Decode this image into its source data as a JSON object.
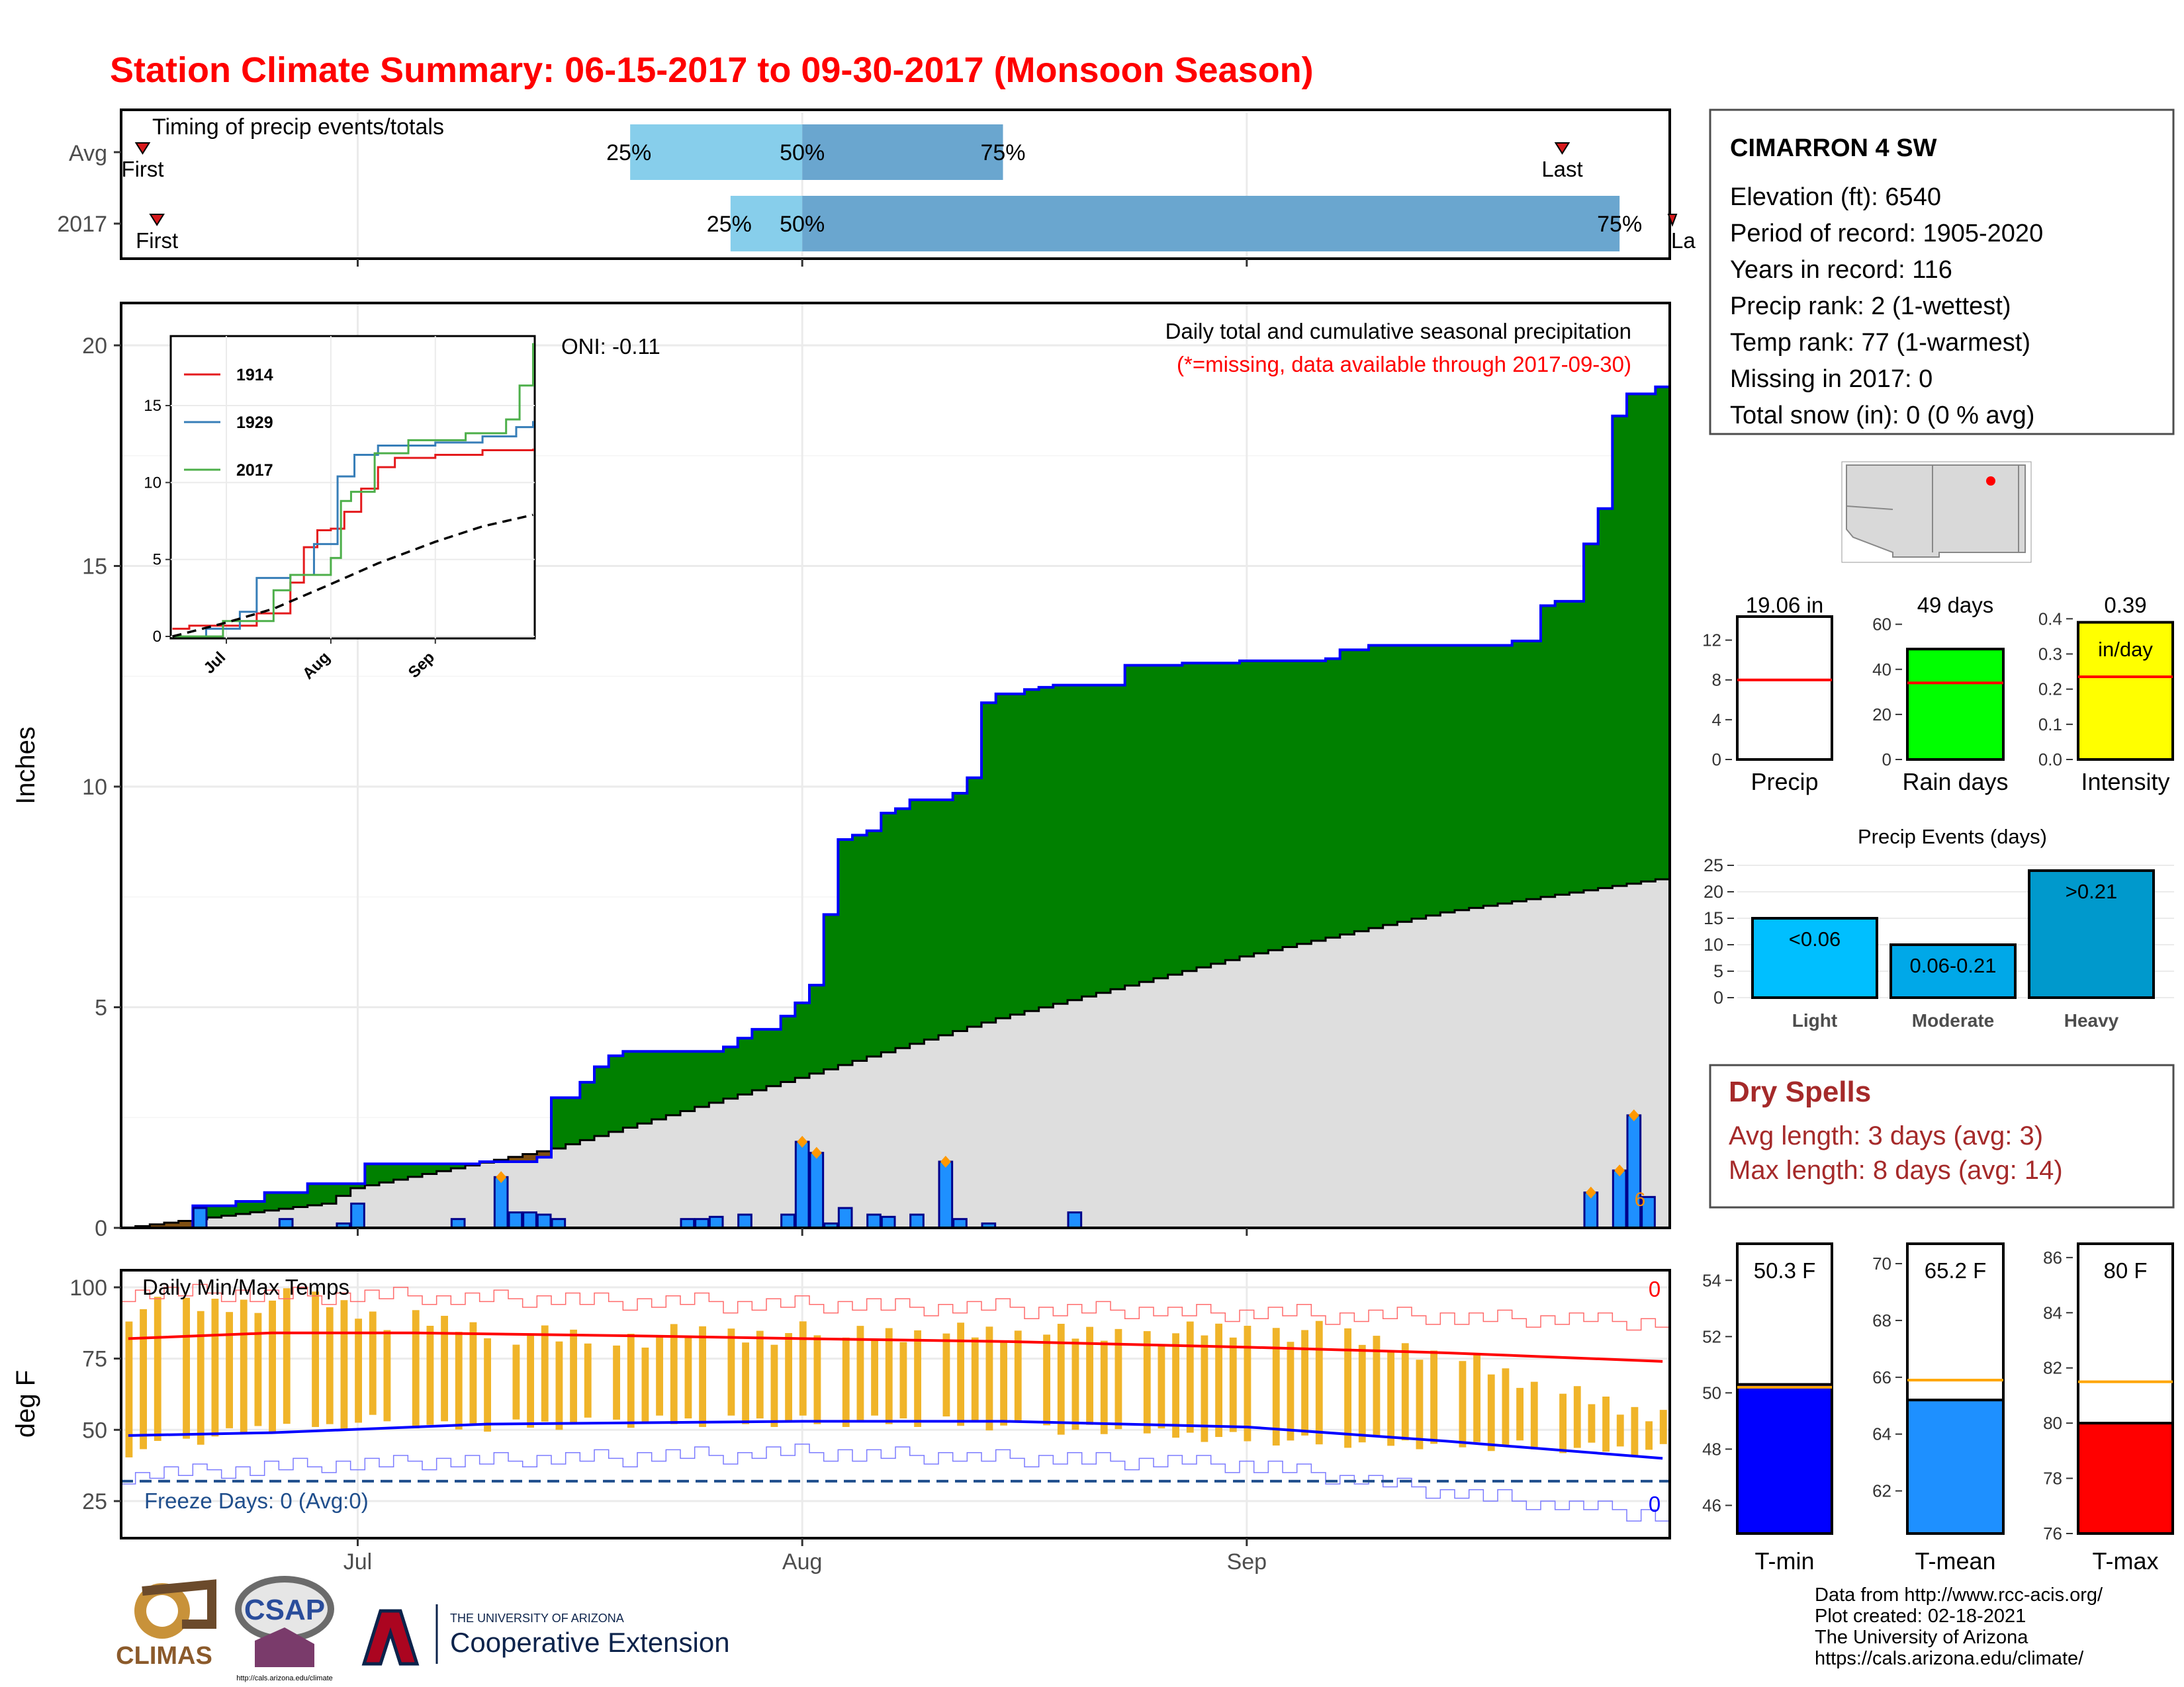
{
  "title": "Station Climate Summary: 06-15-2017 to 09-30-2017 (Monsoon Season)",
  "timing": {
    "label": "Timing of precip events/totals",
    "rows": [
      {
        "name": "Avg",
        "first_label": "First",
        "last_label": "Last",
        "p25_label": "25%",
        "p50_label": "50%",
        "p75_label": "75%",
        "first": "2017-06-16",
        "p25": "2017-07-20",
        "p50": "2017-08-01",
        "p75": "2017-08-15",
        "last": "2017-09-23"
      },
      {
        "name": "2017",
        "first_label": "First",
        "last_label": "Last",
        "p25_label": "25%",
        "p50_label": "50%",
        "p75_label": "75%",
        "first": "2017-06-17",
        "p25": "2017-07-27",
        "p50": "2017-08-01",
        "p75": "2017-09-27",
        "last": "2017-09-30"
      }
    ]
  },
  "precip": {
    "ylabel": "Inches",
    "oni_label": "ONI: -0.11",
    "subtitle": "Daily total and cumulative seasonal precipitation",
    "missing_note": "(*=missing, data available through 2017-09-30)",
    "missing_marker": "6",
    "yticks": [
      "0",
      "5",
      "10",
      "15",
      "20"
    ],
    "xticks": [
      "Jul",
      "Aug",
      "Sep"
    ]
  },
  "inset": {
    "yticks": [
      "0",
      "5",
      "10",
      "15"
    ],
    "xticks": [
      "Jul",
      "Aug",
      "Sep"
    ],
    "legend": [
      "1914",
      "1929",
      "2017"
    ],
    "colors": [
      "#e41a1c",
      "#377eb8",
      "#4daf4a"
    ]
  },
  "temps": {
    "label": "Daily Min/Max Temps",
    "ylabel": "deg F",
    "yticks": [
      "25",
      "50",
      "75",
      "100"
    ],
    "freeze_label": "Freeze Days: 0 (Avg:0)",
    "top_count": "0",
    "bottom_count": "0"
  },
  "station": {
    "name": "CIMARRON 4 SW",
    "lines": [
      "Elevation (ft): 6540",
      "Period of record: 1905-2020",
      "Years in record: 116",
      "Precip rank: 2 (1-wettest)",
      "Temp rank: 77 (1-warmest)",
      "Missing in 2017: 0",
      "Total snow (in): 0 (0 % avg)"
    ]
  },
  "summary_bars": [
    {
      "label": "Precip",
      "value_text": "19.06 in",
      "value": 19.06,
      "avg": 8.0,
      "ymax": 14.5,
      "ticks": [
        "0",
        "4",
        "8",
        "12"
      ],
      "tickvals": [
        0,
        4,
        8,
        12
      ],
      "color": "#ffffff"
    },
    {
      "label": "Rain days",
      "value_text": "49 days",
      "value": 49,
      "avg": 34,
      "ymax": 64,
      "ticks": [
        "0",
        "20",
        "40",
        "60"
      ],
      "tickvals": [
        0,
        20,
        40,
        60
      ],
      "color": "#00ff00"
    },
    {
      "label": "Intensity",
      "value_text": "0.39",
      "value_text2": "in/day",
      "value": 0.39,
      "avg": 0.235,
      "ymax": 0.41,
      "ticks": [
        "0.0",
        "0.1",
        "0.2",
        "0.3",
        "0.4"
      ],
      "tickvals": [
        0,
        0.1,
        0.2,
        0.3,
        0.4
      ],
      "color": "#ffff00"
    }
  ],
  "events": {
    "title": "Precip Events (days)",
    "yticks": [
      "0",
      "5",
      "10",
      "15",
      "20",
      "25"
    ],
    "bars": [
      {
        "label": "Light",
        "range": "<0.06",
        "value": 15,
        "color": "#00bfff"
      },
      {
        "label": "Moderate",
        "range": "0.06-0.21",
        "value": 10,
        "color": "#00a8e8"
      },
      {
        "label": "Heavy",
        "range": ">0.21",
        "value": 24,
        "color": "#0099cc"
      }
    ]
  },
  "dry_spells": {
    "title": "Dry Spells",
    "avg_line": "Avg length: 3 days (avg: 3)",
    "max_line": "Max length: 8 days (avg: 14)"
  },
  "temp_bars": [
    {
      "label": "T-min",
      "value_text": "50.3 F",
      "value": 50.3,
      "avg": 50.2,
      "ymin": 45,
      "ymax": 55.3,
      "ticks": [
        "46",
        "48",
        "50",
        "52",
        "54"
      ],
      "tickvals": [
        46,
        48,
        50,
        52,
        54
      ],
      "color": "#0000ff"
    },
    {
      "label": "T-mean",
      "value_text": "65.2 F",
      "value": 65.2,
      "avg": 65.9,
      "ymin": 60.5,
      "ymax": 70.7,
      "ticks": [
        "62",
        "64",
        "66",
        "68",
        "70"
      ],
      "tickvals": [
        62,
        64,
        66,
        68,
        70
      ],
      "color": "#1e90ff"
    },
    {
      "label": "T-max",
      "value_text": "80 F",
      "value": 80.0,
      "avg": 81.5,
      "ymin": 76,
      "ymax": 86.5,
      "ticks": [
        "76",
        "78",
        "80",
        "82",
        "84",
        "86"
      ],
      "tickvals": [
        76,
        78,
        80,
        82,
        84,
        86
      ],
      "color": "#ff0000"
    }
  ],
  "footer": [
    "Data from http://www.rcc-acis.org/",
    "Plot created: 02-18-2021",
    "The University of Arizona",
    "https://cals.arizona.edu/climate/"
  ],
  "logos": {
    "climas": "CLIMAS",
    "csap": "CSAP",
    "csap_url": "http://cals.arizona.edu/climate",
    "ua_small": "THE UNIVERSITY OF ARIZONA",
    "ua_big": "Cooperative Extension"
  },
  "chart_data": {
    "type": "area",
    "title": "Daily total and cumulative seasonal precipitation",
    "ylabel": "Inches",
    "ylim": [
      0,
      21
    ],
    "x_start": "2017-06-15",
    "x_end": "2017-09-30",
    "series": [
      {
        "name": "Cumulative 2017",
        "points": [
          [
            "2017-06-15",
            0
          ],
          [
            "2017-06-20",
            0.5
          ],
          [
            "2017-06-23",
            0.6
          ],
          [
            "2017-06-25",
            0.8
          ],
          [
            "2017-06-28",
            1.0
          ],
          [
            "2017-07-01",
            1.0
          ],
          [
            "2017-07-02",
            1.45
          ],
          [
            "2017-07-09",
            1.45
          ],
          [
            "2017-07-10",
            1.5
          ],
          [
            "2017-07-14",
            1.6
          ],
          [
            "2017-07-15",
            2.95
          ],
          [
            "2017-07-17",
            3.3
          ],
          [
            "2017-07-18",
            3.65
          ],
          [
            "2017-07-19",
            3.9
          ],
          [
            "2017-07-20",
            4.0
          ],
          [
            "2017-07-26",
            4.0
          ],
          [
            "2017-07-27",
            4.1
          ],
          [
            "2017-07-28",
            4.3
          ],
          [
            "2017-07-29",
            4.5
          ],
          [
            "2017-07-31",
            4.8
          ],
          [
            "2017-08-01",
            5.1
          ],
          [
            "2017-08-02",
            5.5
          ],
          [
            "2017-08-03",
            7.1
          ],
          [
            "2017-08-04",
            8.8
          ],
          [
            "2017-08-05",
            8.9
          ],
          [
            "2017-08-06",
            9.0
          ],
          [
            "2017-08-07",
            9.4
          ],
          [
            "2017-08-08",
            9.5
          ],
          [
            "2017-08-09",
            9.7
          ],
          [
            "2017-08-12",
            9.85
          ],
          [
            "2017-08-13",
            10.2
          ],
          [
            "2017-08-14",
            11.9
          ],
          [
            "2017-08-15",
            12.1
          ],
          [
            "2017-08-17",
            12.2
          ],
          [
            "2017-08-18",
            12.25
          ],
          [
            "2017-08-19",
            12.3
          ],
          [
            "2017-08-24",
            12.75
          ],
          [
            "2017-08-28",
            12.8
          ],
          [
            "2017-09-01",
            12.85
          ],
          [
            "2017-09-07",
            12.9
          ],
          [
            "2017-09-08",
            13.1
          ],
          [
            "2017-09-10",
            13.2
          ],
          [
            "2017-09-14",
            13.2
          ],
          [
            "2017-09-19",
            13.2
          ],
          [
            "2017-09-20",
            13.3
          ],
          [
            "2017-09-22",
            14.1
          ],
          [
            "2017-09-23",
            14.2
          ],
          [
            "2017-09-24",
            14.2
          ],
          [
            "2017-09-25",
            15.5
          ],
          [
            "2017-09-26",
            16.3
          ],
          [
            "2017-09-27",
            18.4
          ],
          [
            "2017-09-28",
            18.9
          ],
          [
            "2017-09-30",
            19.06
          ]
        ]
      },
      {
        "name": "Cumulative average",
        "points": [
          [
            "2017-06-15",
            0
          ],
          [
            "2017-06-29",
            0.55
          ],
          [
            "2017-07-01",
            0.9
          ],
          [
            "2017-07-15",
            1.8
          ],
          [
            "2017-08-01",
            3.4
          ],
          [
            "2017-08-15",
            4.75
          ],
          [
            "2017-09-01",
            6.15
          ],
          [
            "2017-09-15",
            7.15
          ],
          [
            "2017-09-30",
            7.9
          ]
        ]
      },
      {
        "name": "Daily precip",
        "points": [
          [
            "2017-06-20",
            0.45
          ],
          [
            "2017-06-26",
            0.2
          ],
          [
            "2017-06-30",
            0.1
          ],
          [
            "2017-07-01",
            0.55
          ],
          [
            "2017-07-08",
            0.2
          ],
          [
            "2017-07-11",
            1.15
          ],
          [
            "2017-07-12",
            0.35
          ],
          [
            "2017-07-13",
            0.35
          ],
          [
            "2017-07-14",
            0.3
          ],
          [
            "2017-07-15",
            0.2
          ],
          [
            "2017-07-24",
            0.2
          ],
          [
            "2017-07-25",
            0.2
          ],
          [
            "2017-07-26",
            0.25
          ],
          [
            "2017-07-28",
            0.3
          ],
          [
            "2017-07-31",
            0.3
          ],
          [
            "2017-08-01",
            1.95
          ],
          [
            "2017-08-02",
            1.7
          ],
          [
            "2017-08-03",
            0.1
          ],
          [
            "2017-08-04",
            0.45
          ],
          [
            "2017-08-06",
            0.3
          ],
          [
            "2017-08-07",
            0.25
          ],
          [
            "2017-08-09",
            0.3
          ],
          [
            "2017-08-11",
            1.5
          ],
          [
            "2017-08-12",
            0.2
          ],
          [
            "2017-08-14",
            0.1
          ],
          [
            "2017-08-20",
            0.35
          ],
          [
            "2017-09-25",
            0.8
          ],
          [
            "2017-09-27",
            1.3
          ],
          [
            "2017-09-28",
            2.55
          ],
          [
            "2017-09-29",
            0.7
          ]
        ]
      }
    ],
    "inset": {
      "type": "line",
      "ylim": [
        0,
        19
      ],
      "series": [
        {
          "name": "1914",
          "points": [
            [
              "2017-06-15",
              0.5
            ],
            [
              "2017-06-20",
              0.7
            ],
            [
              "2017-07-01",
              0.7
            ],
            [
              "2017-07-10",
              1.5
            ],
            [
              "2017-07-20",
              3.5
            ],
            [
              "2017-07-24",
              5.8
            ],
            [
              "2017-07-28",
              6.9
            ],
            [
              "2017-08-01",
              7.0
            ],
            [
              "2017-08-05",
              8.1
            ],
            [
              "2017-08-10",
              9.6
            ],
            [
              "2017-08-15",
              11.0
            ],
            [
              "2017-08-20",
              11.6
            ],
            [
              "2017-09-01",
              11.8
            ],
            [
              "2017-09-15",
              12.1
            ],
            [
              "2017-09-30",
              12.2
            ]
          ]
        },
        {
          "name": "1929",
          "points": [
            [
              "2017-06-15",
              0.0
            ],
            [
              "2017-06-25",
              0.5
            ],
            [
              "2017-07-05",
              1.6
            ],
            [
              "2017-07-10",
              3.8
            ],
            [
              "2017-07-20",
              4.0
            ],
            [
              "2017-07-27",
              6.0
            ],
            [
              "2017-08-03",
              10.4
            ],
            [
              "2017-08-08",
              11.8
            ],
            [
              "2017-08-15",
              12.4
            ],
            [
              "2017-09-01",
              12.6
            ],
            [
              "2017-09-15",
              13.0
            ],
            [
              "2017-09-25",
              13.6
            ],
            [
              "2017-09-30",
              14.0
            ]
          ]
        },
        {
          "name": "2017",
          "points": [
            [
              "2017-06-15",
              0.0
            ],
            [
              "2017-06-30",
              1.0
            ],
            [
              "2017-07-15",
              3.0
            ],
            [
              "2017-07-20",
              4.0
            ],
            [
              "2017-08-01",
              5.1
            ],
            [
              "2017-08-04",
              8.8
            ],
            [
              "2017-08-07",
              9.4
            ],
            [
              "2017-08-14",
              11.9
            ],
            [
              "2017-08-24",
              12.75
            ],
            [
              "2017-09-10",
              13.2
            ],
            [
              "2017-09-22",
              14.1
            ],
            [
              "2017-09-26",
              16.3
            ],
            [
              "2017-09-30",
              19.06
            ]
          ]
        },
        {
          "name": "Average",
          "points": [
            [
              "2017-06-15",
              0
            ],
            [
              "2017-07-01",
              0.9
            ],
            [
              "2017-07-15",
              1.8
            ],
            [
              "2017-08-01",
              3.4
            ],
            [
              "2017-08-15",
              4.75
            ],
            [
              "2017-09-01",
              6.15
            ],
            [
              "2017-09-15",
              7.15
            ],
            [
              "2017-09-30",
              7.9
            ]
          ]
        }
      ]
    },
    "temperature": {
      "type": "line",
      "ylabel": "deg F",
      "ylim": [
        12,
        106
      ],
      "freeze_threshold": 32,
      "avg_max": [
        [
          "2017-06-15",
          82
        ],
        [
          "2017-06-25",
          84
        ],
        [
          "2017-07-05",
          84
        ],
        [
          "2017-07-20",
          83
        ],
        [
          "2017-08-01",
          82
        ],
        [
          "2017-08-15",
          81
        ],
        [
          "2017-09-01",
          79
        ],
        [
          "2017-09-15",
          77
        ],
        [
          "2017-09-30",
          74
        ]
      ],
      "avg_min": [
        [
          "2017-06-15",
          48
        ],
        [
          "2017-06-25",
          49
        ],
        [
          "2017-07-10",
          52
        ],
        [
          "2017-08-01",
          53
        ],
        [
          "2017-08-15",
          53
        ],
        [
          "2017-09-01",
          51
        ],
        [
          "2017-09-15",
          46
        ],
        [
          "2017-09-30",
          40
        ]
      ],
      "record_max": [
        [
          "2017-06-15",
          98
        ],
        [
          "2017-07-01",
          97
        ],
        [
          "2017-08-01",
          94
        ],
        [
          "2017-09-01",
          91
        ],
        [
          "2017-09-30",
          88
        ]
      ],
      "record_min": [
        [
          "2017-06-15",
          34
        ],
        [
          "2017-07-01",
          38
        ],
        [
          "2017-08-01",
          42
        ],
        [
          "2017-09-01",
          38
        ],
        [
          "2017-09-20",
          25
        ],
        [
          "2017-09-30",
          20
        ]
      ],
      "daily_ranges": [
        [
          "2017-06-18",
          45,
          93
        ],
        [
          "2017-06-27",
          53,
          96
        ],
        [
          "2017-06-29",
          51,
          95
        ],
        [
          "2017-07-03",
          54,
          89
        ],
        [
          "2017-07-07",
          51,
          87
        ],
        [
          "2017-07-15",
          52,
          82
        ],
        [
          "2017-07-22",
          53,
          83
        ],
        [
          "2017-08-10",
          53,
          85
        ],
        [
          "2017-08-20",
          50,
          83
        ],
        [
          "2017-09-05",
          46,
          85
        ],
        [
          "2017-09-15",
          45,
          77
        ],
        [
          "2017-09-22",
          44,
          64
        ],
        [
          "2017-09-28",
          43,
          56
        ]
      ]
    }
  }
}
